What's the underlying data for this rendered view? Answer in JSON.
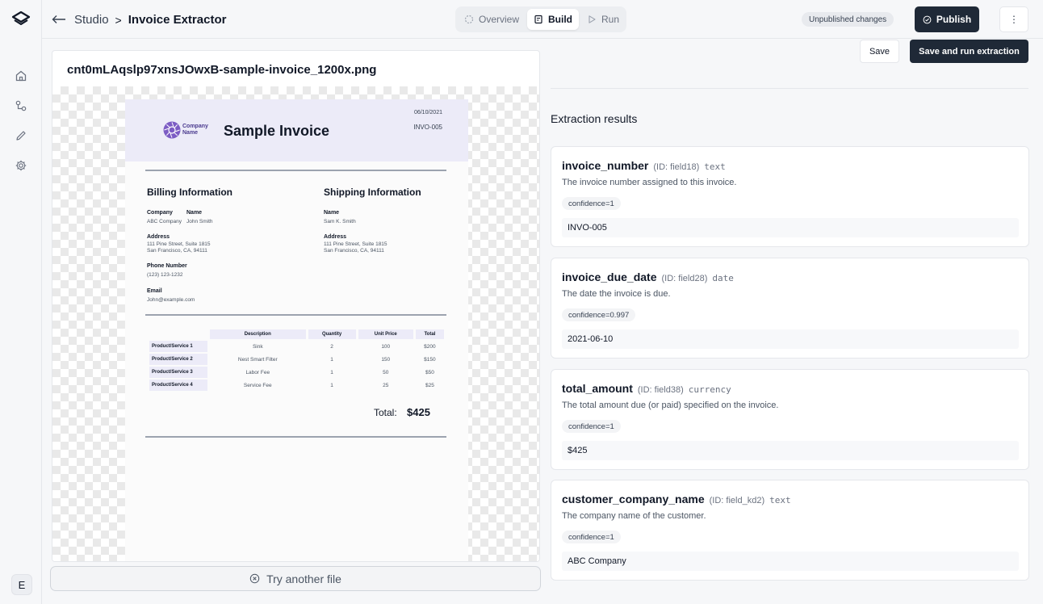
{
  "rail": {
    "avatar": "E"
  },
  "header": {
    "breadcrumb_root": "Studio",
    "breadcrumb_sep": ">",
    "breadcrumb_current": "Invoice Extractor",
    "modes": [
      "Overview",
      "Build",
      "Run"
    ],
    "active_mode": "Build",
    "status_badge": "Unpublished changes",
    "publish_label": "Publish",
    "more_label": "⋮"
  },
  "preview": {
    "file_name": "cnt0mLAqslp97xnsJOwxB-sample-invoice_1200x.png",
    "try_another_label": "Try another file",
    "invoice": {
      "logo_text_line1": "Company",
      "logo_text_line2": "Name",
      "title": "Sample Invoice",
      "date": "06/10/2021",
      "number": "INVO-005",
      "billing_heading": "Billing Information",
      "shipping_heading": "Shipping Information",
      "billing": {
        "company_label": "Company",
        "company_value": "ABC Company",
        "name_label": "Name",
        "name_value": "John Smith",
        "address_label": "Address",
        "address_value": "111 Pine Street, Suite 1815\nSan Francisco, CA, 94111",
        "phone_label": "Phone Number",
        "phone_value": "(123) 123-1232",
        "email_label": "Email",
        "email_value": "John@example.com"
      },
      "shipping": {
        "name_label": "Name",
        "name_value": "Sam K. Smith",
        "address_label": "Address",
        "address_value": "111 Pine Street, Suite 1815\nSan Francisco, CA, 94111"
      },
      "table_headers": [
        "Description",
        "Quantity",
        "Unit Price",
        "Total"
      ],
      "rows": [
        [
          "Product/Service 1",
          "Sink",
          "2",
          "100",
          "$200"
        ],
        [
          "Product/Service 2",
          "Nest Smart Filter",
          "1",
          "150",
          "$150"
        ],
        [
          "Product/Service 3",
          "Labor Fee",
          "1",
          "50",
          "$50"
        ],
        [
          "Product/Service 4",
          "Service Fee",
          "1",
          "25",
          "$25"
        ]
      ],
      "total_label": "Total:",
      "total_value": "$425"
    }
  },
  "actions": {
    "save_label": "Save",
    "save_run_label": "Save and run extraction"
  },
  "results": {
    "title": "Extraction results",
    "fields": [
      {
        "name": "invoice_number",
        "id": "(ID: field18)",
        "type": "text",
        "description": "The invoice number assigned to this invoice.",
        "confidence": "confidence=1",
        "value": "INVO-005"
      },
      {
        "name": "invoice_due_date",
        "id": "(ID: field28)",
        "type": "date",
        "description": "The date the invoice is due.",
        "confidence": "confidence=0.997",
        "value": "2021-06-10"
      },
      {
        "name": "total_amount",
        "id": "(ID: field38)",
        "type": "currency",
        "description": "The total amount due (or paid) specified on the invoice.",
        "confidence": "confidence=1",
        "value": "$425"
      },
      {
        "name": "customer_company_name",
        "id": "(ID: field_kd2)",
        "type": "text",
        "description": "The company name of the customer.",
        "confidence": "confidence=1",
        "value": "ABC Company"
      }
    ]
  }
}
